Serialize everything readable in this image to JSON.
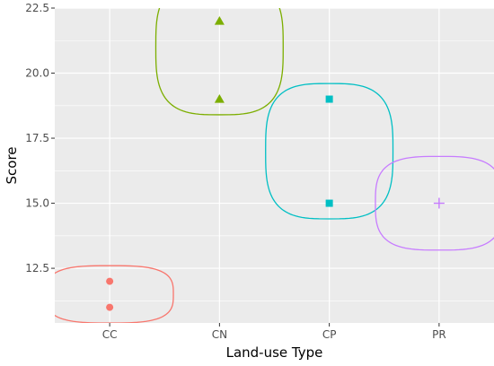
{
  "chart_data": {
    "type": "scatter",
    "title": "",
    "xlabel": "Land-use Type",
    "ylabel": "Score",
    "categories": [
      "CC",
      "CN",
      "CP",
      "PR"
    ],
    "y_ticks": [
      "12.5",
      "15.0",
      "17.5",
      "20.0",
      "22.5"
    ],
    "y_tick_values": [
      12.5,
      15.0,
      17.5,
      20.0,
      22.5
    ],
    "ylim": [
      10.4,
      22.5
    ],
    "grid": true,
    "legend": "none",
    "panel_color": "#ebebeb",
    "gridline_color": "#ffffff",
    "series": [
      {
        "category": "CC",
        "shape": "circle",
        "color": "#f8766d",
        "points": [
          12.0,
          11.0
        ],
        "ellipse": {
          "center": 11.5,
          "y_half_height": 1.1
        }
      },
      {
        "category": "CN",
        "shape": "triangle",
        "color": "#7cae00",
        "points": [
          22.0,
          19.0
        ],
        "ellipse": {
          "center": 21.0,
          "y_half_height": 2.6
        }
      },
      {
        "category": "CP",
        "shape": "square",
        "color": "#00bfc4",
        "points": [
          19.0,
          15.0
        ],
        "ellipse": {
          "center": 17.0,
          "y_half_height": 2.6
        }
      },
      {
        "category": "PR",
        "shape": "plus",
        "color": "#c77cff",
        "points": [
          15.0
        ],
        "ellipse": {
          "center": 15.0,
          "y_half_height": 1.8
        }
      }
    ]
  }
}
